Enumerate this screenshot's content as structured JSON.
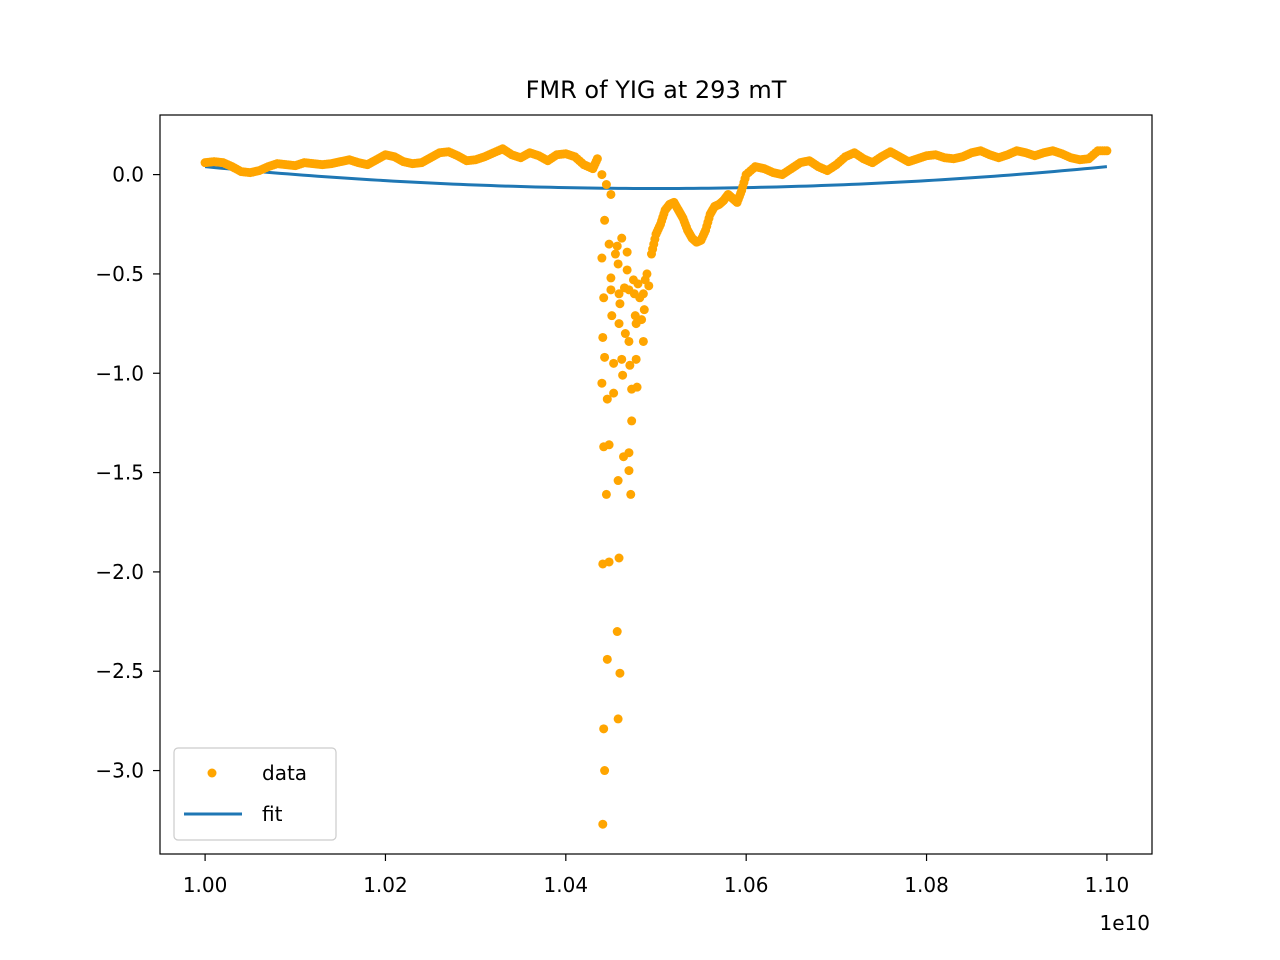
{
  "chart_data": {
    "type": "scatter",
    "title": "FMR of YIG at 293 mT",
    "xlabel": "",
    "ylabel": "",
    "x_offset_label": "1e10",
    "xlim": [
      0.995,
      1.105
    ],
    "ylim": [
      -3.42,
      0.3
    ],
    "x_ticks": [
      1.0,
      1.02,
      1.04,
      1.06,
      1.08,
      1.1
    ],
    "x_tick_labels": [
      "1.00",
      "1.02",
      "1.04",
      "1.06",
      "1.08",
      "1.10"
    ],
    "y_ticks": [
      0.0,
      -0.5,
      -1.0,
      -1.5,
      -2.0,
      -2.5,
      -3.0
    ],
    "y_tick_labels": [
      "0.0",
      "−0.5",
      "−1.0",
      "−1.5",
      "−2.0",
      "−2.5",
      "−3.0"
    ],
    "legend": {
      "position": "lower-left",
      "entries": [
        "data",
        "fit"
      ]
    },
    "colors": {
      "data": "#ffa500",
      "fit": "#1f77b4"
    },
    "series": [
      {
        "name": "data",
        "kind": "scatter",
        "color": "#ffa500",
        "points": [
          [
            1.0,
            0.06
          ],
          [
            1.001,
            0.065
          ],
          [
            1.002,
            0.06
          ],
          [
            1.003,
            0.04
          ],
          [
            1.004,
            0.015
          ],
          [
            1.005,
            0.01
          ],
          [
            1.006,
            0.02
          ],
          [
            1.007,
            0.04
          ],
          [
            1.008,
            0.055
          ],
          [
            1.009,
            0.05
          ],
          [
            1.01,
            0.045
          ],
          [
            1.011,
            0.06
          ],
          [
            1.012,
            0.055
          ],
          [
            1.013,
            0.05
          ],
          [
            1.014,
            0.055
          ],
          [
            1.015,
            0.065
          ],
          [
            1.016,
            0.075
          ],
          [
            1.017,
            0.06
          ],
          [
            1.018,
            0.05
          ],
          [
            1.019,
            0.075
          ],
          [
            1.02,
            0.1
          ],
          [
            1.021,
            0.09
          ],
          [
            1.022,
            0.065
          ],
          [
            1.023,
            0.055
          ],
          [
            1.024,
            0.06
          ],
          [
            1.025,
            0.085
          ],
          [
            1.026,
            0.11
          ],
          [
            1.027,
            0.115
          ],
          [
            1.028,
            0.095
          ],
          [
            1.029,
            0.07
          ],
          [
            1.03,
            0.075
          ],
          [
            1.031,
            0.09
          ],
          [
            1.032,
            0.11
          ],
          [
            1.033,
            0.13
          ],
          [
            1.034,
            0.1
          ],
          [
            1.035,
            0.085
          ],
          [
            1.036,
            0.11
          ],
          [
            1.037,
            0.095
          ],
          [
            1.038,
            0.07
          ],
          [
            1.039,
            0.1
          ],
          [
            1.04,
            0.105
          ],
          [
            1.041,
            0.09
          ],
          [
            1.042,
            0.05
          ],
          [
            1.043,
            0.03
          ],
          [
            1.0435,
            0.08
          ],
          [
            1.044,
            0.0
          ],
          [
            1.0445,
            -0.05
          ],
          [
            1.045,
            -0.1
          ],
          [
            1.0443,
            -0.23
          ],
          [
            1.044,
            -0.42
          ],
          [
            1.0442,
            -0.62
          ],
          [
            1.0441,
            -0.82
          ],
          [
            1.0443,
            -0.92
          ],
          [
            1.044,
            -1.05
          ],
          [
            1.0446,
            -1.13
          ],
          [
            1.0442,
            -1.37
          ],
          [
            1.0448,
            -1.36
          ],
          [
            1.0445,
            -1.61
          ],
          [
            1.0441,
            -1.96
          ],
          [
            1.0448,
            -1.95
          ],
          [
            1.0446,
            -2.44
          ],
          [
            1.0442,
            -2.79
          ],
          [
            1.0443,
            -3.0
          ],
          [
            1.0441,
            -3.27
          ],
          [
            1.0448,
            -0.35
          ],
          [
            1.045,
            -0.52
          ],
          [
            1.045,
            -0.58
          ],
          [
            1.0451,
            -0.71
          ],
          [
            1.0453,
            -0.95
          ],
          [
            1.0453,
            -1.1
          ],
          [
            1.0455,
            -0.4
          ],
          [
            1.0457,
            -0.36
          ],
          [
            1.0458,
            -0.45
          ],
          [
            1.0459,
            -0.6
          ],
          [
            1.046,
            -0.65
          ],
          [
            1.0459,
            -0.75
          ],
          [
            1.0458,
            -1.54
          ],
          [
            1.0459,
            -1.93
          ],
          [
            1.0457,
            -2.3
          ],
          [
            1.046,
            -2.51
          ],
          [
            1.0458,
            -2.74
          ],
          [
            1.0462,
            -0.32
          ],
          [
            1.0462,
            -0.93
          ],
          [
            1.0463,
            -1.01
          ],
          [
            1.0464,
            -1.42
          ],
          [
            1.0465,
            -0.57
          ],
          [
            1.0466,
            -0.8
          ],
          [
            1.0468,
            -0.39
          ],
          [
            1.0468,
            -0.48
          ],
          [
            1.047,
            -0.58
          ],
          [
            1.047,
            -0.84
          ],
          [
            1.0471,
            -0.96
          ],
          [
            1.047,
            -1.4
          ],
          [
            1.047,
            -1.49
          ],
          [
            1.0472,
            -1.61
          ],
          [
            1.0473,
            -1.24
          ],
          [
            1.0473,
            -1.08
          ],
          [
            1.0475,
            -0.53
          ],
          [
            1.0476,
            -0.6
          ],
          [
            1.0477,
            -0.71
          ],
          [
            1.0478,
            -0.75
          ],
          [
            1.0478,
            -0.93
          ],
          [
            1.0479,
            -1.07
          ],
          [
            1.048,
            -0.55
          ],
          [
            1.0482,
            -0.62
          ],
          [
            1.0484,
            -0.73
          ],
          [
            1.0486,
            -0.84
          ],
          [
            1.0486,
            -0.6
          ],
          [
            1.0487,
            -0.68
          ],
          [
            1.0488,
            -0.53
          ],
          [
            1.049,
            -0.5
          ],
          [
            1.0492,
            -0.56
          ],
          [
            1.0495,
            -0.4
          ],
          [
            1.05,
            -0.3
          ],
          [
            1.0505,
            -0.25
          ],
          [
            1.051,
            -0.18
          ],
          [
            1.0515,
            -0.15
          ],
          [
            1.052,
            -0.14
          ],
          [
            1.0525,
            -0.18
          ],
          [
            1.053,
            -0.22
          ],
          [
            1.0535,
            -0.28
          ],
          [
            1.054,
            -0.32
          ],
          [
            1.0545,
            -0.34
          ],
          [
            1.055,
            -0.33
          ],
          [
            1.0555,
            -0.28
          ],
          [
            1.056,
            -0.2
          ],
          [
            1.0565,
            -0.16
          ],
          [
            1.057,
            -0.15
          ],
          [
            1.0575,
            -0.13
          ],
          [
            1.058,
            -0.1
          ],
          [
            1.0585,
            -0.12
          ],
          [
            1.059,
            -0.14
          ],
          [
            1.0595,
            -0.08
          ],
          [
            1.06,
            0.0
          ],
          [
            1.061,
            0.04
          ],
          [
            1.062,
            0.03
          ],
          [
            1.063,
            0.01
          ],
          [
            1.064,
            0.0
          ],
          [
            1.065,
            0.03
          ],
          [
            1.066,
            0.06
          ],
          [
            1.067,
            0.07
          ],
          [
            1.068,
            0.04
          ],
          [
            1.069,
            0.02
          ],
          [
            1.07,
            0.05
          ],
          [
            1.071,
            0.09
          ],
          [
            1.072,
            0.11
          ],
          [
            1.073,
            0.08
          ],
          [
            1.074,
            0.06
          ],
          [
            1.075,
            0.09
          ],
          [
            1.076,
            0.115
          ],
          [
            1.077,
            0.09
          ],
          [
            1.078,
            0.065
          ],
          [
            1.079,
            0.08
          ],
          [
            1.08,
            0.095
          ],
          [
            1.081,
            0.1
          ],
          [
            1.082,
            0.085
          ],
          [
            1.083,
            0.08
          ],
          [
            1.084,
            0.09
          ],
          [
            1.085,
            0.11
          ],
          [
            1.086,
            0.12
          ],
          [
            1.087,
            0.1
          ],
          [
            1.088,
            0.085
          ],
          [
            1.089,
            0.1
          ],
          [
            1.09,
            0.12
          ],
          [
            1.091,
            0.11
          ],
          [
            1.092,
            0.095
          ],
          [
            1.093,
            0.11
          ],
          [
            1.094,
            0.12
          ],
          [
            1.095,
            0.105
          ],
          [
            1.096,
            0.085
          ],
          [
            1.097,
            0.075
          ],
          [
            1.098,
            0.08
          ],
          [
            1.099,
            0.12
          ],
          [
            1.1,
            0.12
          ]
        ]
      },
      {
        "name": "fit",
        "kind": "line",
        "color": "#1f77b4",
        "curve": {
          "form": "parabola",
          "x_start": 1.0,
          "x_end": 1.1,
          "y_start": 0.04,
          "y_end": 0.04,
          "x_min": 1.05,
          "y_min": -0.07
        }
      }
    ]
  }
}
